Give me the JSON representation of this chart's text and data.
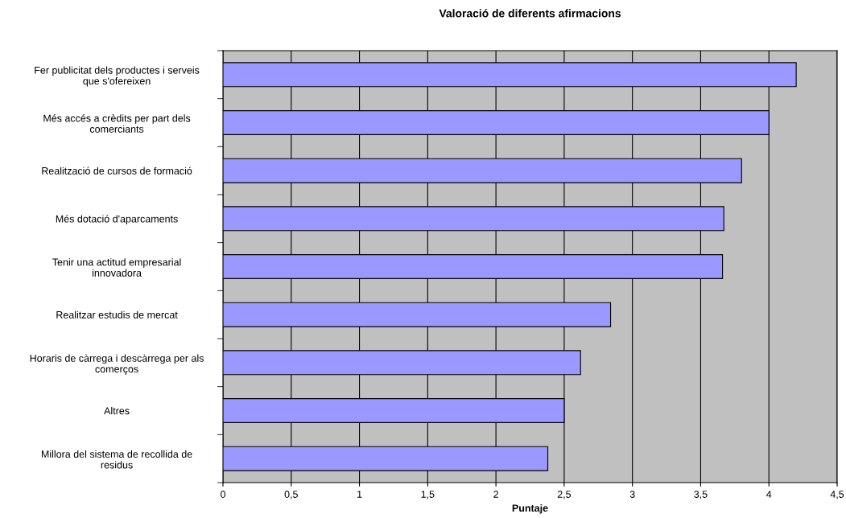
{
  "chart_data": {
    "type": "bar",
    "orientation": "horizontal",
    "title": "Valoració de diferents afirmacions",
    "xlabel": "Puntaje",
    "categories": [
      "Fer publicitat dels productes i serveis\nque s'ofereixen",
      "Més accés a crèdits per part dels\ncomerciants",
      "Realització de cursos de formació",
      "Més dotació d'aparcaments",
      "Tenir una actitud empresarial\ninnovadora",
      "Realitzar estudis de mercat",
      "Horaris de càrrega i descàrrega per als\ncomerços",
      "Altres",
      "Millora del sistema de recollida de\nresidus"
    ],
    "values": [
      4.2,
      4.0,
      3.8,
      3.67,
      3.66,
      2.84,
      2.62,
      2.5,
      2.38
    ],
    "color": "#9999ff",
    "xlim": [
      0,
      4.5
    ],
    "xticks": [
      0,
      {
        "value": 0.5,
        "label": "0,5"
      },
      1,
      {
        "value": 1.5,
        "label": "1,5"
      },
      2,
      {
        "value": 2.5,
        "label": "2,5"
      },
      3,
      {
        "value": 3.5,
        "label": "3,5"
      },
      4,
      {
        "value": 4.5,
        "label": "4,5"
      }
    ],
    "grid": "x"
  }
}
